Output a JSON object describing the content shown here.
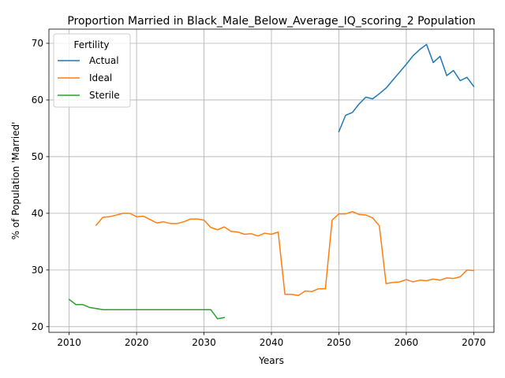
{
  "chart_data": {
    "type": "line",
    "title": "Proportion Married in Black_Male_Below_Average_IQ_scoring_2 Population",
    "xlabel": "Years",
    "ylabel": "% of Population 'Married'",
    "xlim": [
      2007,
      2073
    ],
    "ylim": [
      19,
      72.5
    ],
    "xticks": [
      2010,
      2020,
      2030,
      2040,
      2050,
      2060,
      2070
    ],
    "yticks": [
      20,
      30,
      40,
      50,
      60,
      70
    ],
    "grid": true,
    "legend": {
      "title": "Fertility",
      "placement": "top-left"
    },
    "series": [
      {
        "name": "Actual",
        "color": "#1f77b4",
        "x": [
          2050,
          2051,
          2052,
          2053,
          2054,
          2055,
          2056,
          2057,
          2058,
          2059,
          2060,
          2061,
          2062,
          2063,
          2064,
          2065,
          2066,
          2067,
          2068,
          2069,
          2070
        ],
        "y": [
          54.4,
          57.3,
          57.8,
          59.3,
          60.5,
          60.2,
          61.1,
          62.1,
          63.5,
          64.9,
          66.3,
          67.8,
          68.9,
          69.8,
          66.6,
          67.7,
          64.3,
          65.2,
          63.4,
          64.0,
          62.4
        ]
      },
      {
        "name": "Ideal",
        "color": "#ff7f0e",
        "x": [
          2014,
          2015,
          2016,
          2017,
          2018,
          2019,
          2020,
          2021,
          2022,
          2023,
          2024,
          2025,
          2026,
          2027,
          2028,
          2029,
          2030,
          2031,
          2032,
          2033,
          2034,
          2035,
          2036,
          2037,
          2038,
          2039,
          2040,
          2041,
          2042,
          2043,
          2044,
          2045,
          2046,
          2047,
          2048,
          2049,
          2050,
          2051,
          2052,
          2053,
          2054,
          2055,
          2056,
          2057,
          2058,
          2059,
          2060,
          2061,
          2062,
          2063,
          2064,
          2065,
          2066,
          2067,
          2068,
          2069,
          2070
        ],
        "y": [
          37.9,
          39.3,
          39.4,
          39.7,
          40.0,
          40.0,
          39.4,
          39.5,
          38.9,
          38.3,
          38.5,
          38.2,
          38.2,
          38.5,
          39.0,
          39.0,
          38.8,
          37.5,
          37.1,
          37.6,
          36.8,
          36.7,
          36.3,
          36.4,
          36.0,
          36.5,
          36.3,
          36.7,
          25.7,
          25.7,
          25.5,
          26.3,
          26.2,
          26.7,
          26.7,
          38.8,
          39.9,
          39.9,
          40.3,
          39.8,
          39.7,
          39.2,
          37.8,
          27.6,
          27.8,
          27.9,
          28.3,
          27.9,
          28.2,
          28.1,
          28.4,
          28.2,
          28.6,
          28.5,
          28.8,
          30.0,
          29.9
        ]
      },
      {
        "name": "Sterile",
        "color": "#2ca02c",
        "x": [
          2010,
          2011,
          2012,
          2013,
          2014,
          2015,
          2016,
          2017,
          2018,
          2019,
          2020,
          2021,
          2022,
          2023,
          2024,
          2025,
          2026,
          2027,
          2028,
          2029,
          2030,
          2031,
          2032,
          2033
        ],
        "y": [
          24.8,
          23.9,
          23.9,
          23.4,
          23.2,
          23.0,
          23.0,
          23.0,
          23.0,
          23.0,
          23.0,
          23.0,
          23.0,
          23.0,
          23.0,
          23.0,
          23.0,
          23.0,
          23.0,
          23.0,
          23.0,
          23.0,
          21.4,
          21.6
        ]
      }
    ]
  }
}
